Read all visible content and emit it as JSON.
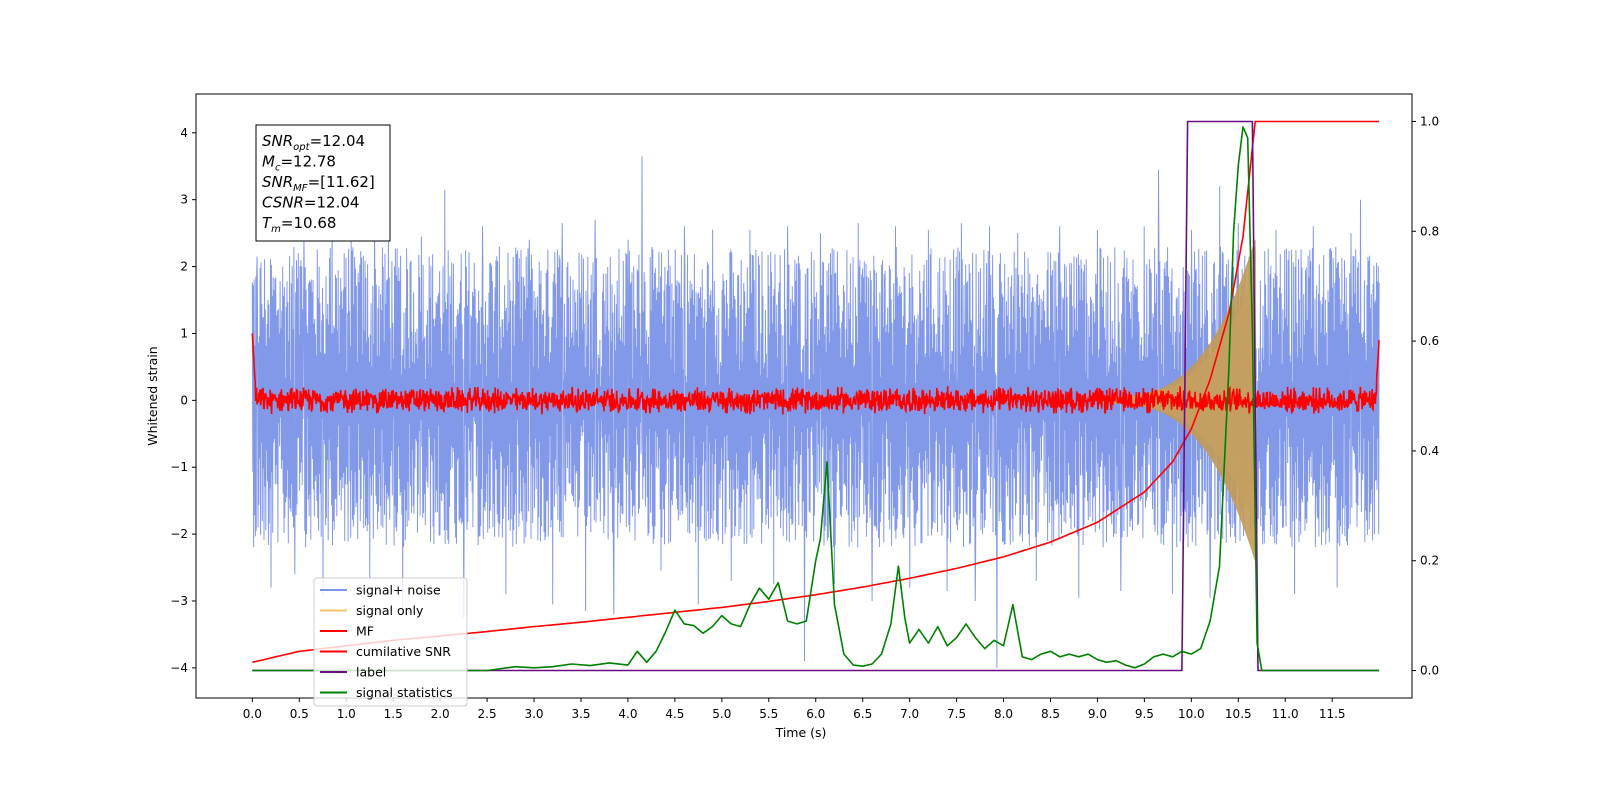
{
  "chart_data": {
    "type": "line",
    "title": "",
    "xlabel": "Time (s)",
    "ylabel": "Whitened strain",
    "y2label": "",
    "xlim": [
      -0.6,
      12.35
    ],
    "ylim": [
      -4.45,
      4.58
    ],
    "y2lim": [
      -0.05,
      1.05
    ],
    "grid": false,
    "legend_position": "lower-left",
    "x_ticks": [
      "0.0",
      "0.5",
      "1.0",
      "1.5",
      "2.0",
      "2.5",
      "3.0",
      "3.5",
      "4.0",
      "4.5",
      "5.0",
      "5.5",
      "6.0",
      "6.5",
      "7.0",
      "7.5",
      "8.0",
      "8.5",
      "9.0",
      "9.5",
      "10.0",
      "10.5",
      "11.0",
      "11.5"
    ],
    "y_ticks": [
      "4",
      "3",
      "2",
      "1",
      "0",
      "−1",
      "−2",
      "−3",
      "−4"
    ],
    "y2_ticks": [
      "1.0",
      "0.8",
      "0.6",
      "0.4",
      "0.2",
      "0.0"
    ],
    "annotation": {
      "lines": [
        {
          "sym": "SNR",
          "sub": "opt",
          "val": "=12.04"
        },
        {
          "sym": "M",
          "sub": "c",
          "val": "=12.78"
        },
        {
          "sym": "SNR",
          "sub": "MF",
          "val": "=[11.62]"
        },
        {
          "sym": "CSNR",
          "sub": "",
          "val": "=12.04"
        },
        {
          "sym": "T",
          "sub": "m",
          "val": "=10.68"
        }
      ]
    },
    "series": [
      {
        "name": "signal+ noise",
        "axis": "left",
        "color": "#7b94e8",
        "description_band": "dense noise, typical envelope",
        "x_range": [
          0.0,
          12.0
        ],
        "band_low": -2.0,
        "band_high": 2.1,
        "spikes": [
          [
            0.05,
            2.15
          ],
          [
            0.2,
            -2.8
          ],
          [
            0.45,
            -2.6
          ],
          [
            0.55,
            2.45
          ],
          [
            0.75,
            -2.9
          ],
          [
            0.85,
            3.0
          ],
          [
            1.05,
            2.6
          ],
          [
            1.25,
            -2.7
          ],
          [
            1.3,
            3.45
          ],
          [
            1.45,
            2.55
          ],
          [
            1.6,
            -3.1
          ],
          [
            1.8,
            2.45
          ],
          [
            2.05,
            3.15
          ],
          [
            2.25,
            -3.25
          ],
          [
            2.45,
            2.6
          ],
          [
            2.7,
            -2.9
          ],
          [
            2.95,
            2.4
          ],
          [
            3.2,
            -3.05
          ],
          [
            3.3,
            2.65
          ],
          [
            3.55,
            -3.15
          ],
          [
            3.65,
            2.7
          ],
          [
            3.85,
            -3.2
          ],
          [
            4.0,
            2.4
          ],
          [
            4.15,
            3.65
          ],
          [
            4.35,
            -2.55
          ],
          [
            4.6,
            2.6
          ],
          [
            4.75,
            -3.05
          ],
          [
            4.9,
            2.55
          ],
          [
            5.1,
            -2.7
          ],
          [
            5.3,
            2.55
          ],
          [
            5.55,
            -2.75
          ],
          [
            5.7,
            2.6
          ],
          [
            5.88,
            -3.9
          ],
          [
            6.05,
            2.5
          ],
          [
            6.2,
            -2.75
          ],
          [
            6.45,
            2.65
          ],
          [
            6.6,
            -3.0
          ],
          [
            6.85,
            2.6
          ],
          [
            7.0,
            -2.8
          ],
          [
            7.2,
            2.55
          ],
          [
            7.4,
            -2.85
          ],
          [
            7.55,
            2.65
          ],
          [
            7.7,
            -3.0
          ],
          [
            7.85,
            2.6
          ],
          [
            7.93,
            -4.0
          ],
          [
            8.15,
            2.5
          ],
          [
            8.35,
            -2.7
          ],
          [
            8.6,
            2.6
          ],
          [
            8.8,
            -2.95
          ],
          [
            9.0,
            2.55
          ],
          [
            9.25,
            -2.85
          ],
          [
            9.5,
            2.6
          ],
          [
            9.65,
            3.45
          ],
          [
            9.8,
            -2.9
          ],
          [
            10.0,
            2.55
          ],
          [
            10.2,
            -2.95
          ],
          [
            10.3,
            3.2
          ],
          [
            10.5,
            2.65
          ],
          [
            10.7,
            -2.9
          ],
          [
            10.9,
            2.55
          ],
          [
            11.1,
            -2.9
          ],
          [
            11.3,
            2.6
          ],
          [
            11.55,
            -2.8
          ],
          [
            11.7,
            2.5
          ],
          [
            11.8,
            3.0
          ],
          [
            11.95,
            -2.0
          ]
        ]
      },
      {
        "name": "signal only",
        "axis": "left",
        "color": "#f5c36a",
        "chirp_start": 9.0,
        "chirp_end": 10.68,
        "amplitude_start": 0.05,
        "amplitude_end": 2.4
      },
      {
        "name": "MF",
        "axis": "left",
        "color": "#ff0000",
        "x_range": [
          0.0,
          12.0
        ],
        "center": 0.0,
        "half_width": 0.18,
        "start_value": 1.0,
        "end_value": 0.9
      },
      {
        "name": "cumilative SNR",
        "axis": "right",
        "color": "#ff0000",
        "x": [
          0.0,
          0.5,
          1.0,
          1.5,
          2.0,
          2.5,
          3.0,
          3.5,
          4.0,
          4.5,
          5.0,
          5.5,
          6.0,
          6.5,
          7.0,
          7.5,
          8.0,
          8.5,
          9.0,
          9.5,
          9.8,
          10.0,
          10.2,
          10.4,
          10.55,
          10.68,
          12.0
        ],
        "y": [
          0.015,
          0.035,
          0.045,
          0.055,
          0.063,
          0.071,
          0.08,
          0.088,
          0.097,
          0.106,
          0.115,
          0.126,
          0.138,
          0.152,
          0.168,
          0.186,
          0.207,
          0.234,
          0.27,
          0.325,
          0.38,
          0.44,
          0.53,
          0.65,
          0.79,
          1.0,
          1.0
        ]
      },
      {
        "name": "label",
        "axis": "right",
        "color": "#6a0d83",
        "x": [
          0.0,
          9.9,
          9.96,
          10.65,
          10.71,
          12.0
        ],
        "y": [
          0.0,
          0.0,
          1.0,
          1.0,
          0.0,
          0.0
        ]
      },
      {
        "name": "signal statistics",
        "axis": "right",
        "color": "#008000",
        "x": [
          0.0,
          0.5,
          1.0,
          1.5,
          2.0,
          2.5,
          2.8,
          3.0,
          3.2,
          3.4,
          3.6,
          3.8,
          4.0,
          4.1,
          4.2,
          4.3,
          4.4,
          4.5,
          4.6,
          4.7,
          4.8,
          4.9,
          5.0,
          5.1,
          5.2,
          5.3,
          5.4,
          5.5,
          5.6,
          5.7,
          5.8,
          5.9,
          6.0,
          6.05,
          6.12,
          6.2,
          6.3,
          6.4,
          6.5,
          6.6,
          6.7,
          6.8,
          6.88,
          6.95,
          7.0,
          7.1,
          7.2,
          7.3,
          7.4,
          7.5,
          7.6,
          7.7,
          7.8,
          7.9,
          8.0,
          8.1,
          8.2,
          8.3,
          8.4,
          8.5,
          8.6,
          8.7,
          8.8,
          8.9,
          9.0,
          9.1,
          9.2,
          9.3,
          9.4,
          9.5,
          9.6,
          9.7,
          9.8,
          9.9,
          10.0,
          10.1,
          10.2,
          10.3,
          10.4,
          10.45,
          10.5,
          10.55,
          10.6,
          10.65,
          10.7,
          10.75,
          12.0
        ],
        "y": [
          0.0,
          0.0,
          0.0,
          0.0,
          0.0,
          0.0,
          0.007,
          0.005,
          0.007,
          0.012,
          0.009,
          0.014,
          0.01,
          0.035,
          0.015,
          0.035,
          0.07,
          0.11,
          0.085,
          0.082,
          0.068,
          0.08,
          0.1,
          0.085,
          0.08,
          0.12,
          0.15,
          0.13,
          0.16,
          0.09,
          0.085,
          0.09,
          0.2,
          0.24,
          0.38,
          0.12,
          0.03,
          0.01,
          0.008,
          0.012,
          0.03,
          0.085,
          0.19,
          0.095,
          0.05,
          0.075,
          0.05,
          0.08,
          0.045,
          0.06,
          0.085,
          0.06,
          0.04,
          0.055,
          0.045,
          0.12,
          0.025,
          0.02,
          0.03,
          0.035,
          0.025,
          0.03,
          0.025,
          0.03,
          0.02,
          0.015,
          0.018,
          0.01,
          0.005,
          0.012,
          0.025,
          0.03,
          0.025,
          0.035,
          0.03,
          0.04,
          0.09,
          0.19,
          0.55,
          0.8,
          0.92,
          0.99,
          0.97,
          0.62,
          0.05,
          0.0,
          0.0
        ]
      }
    ]
  }
}
